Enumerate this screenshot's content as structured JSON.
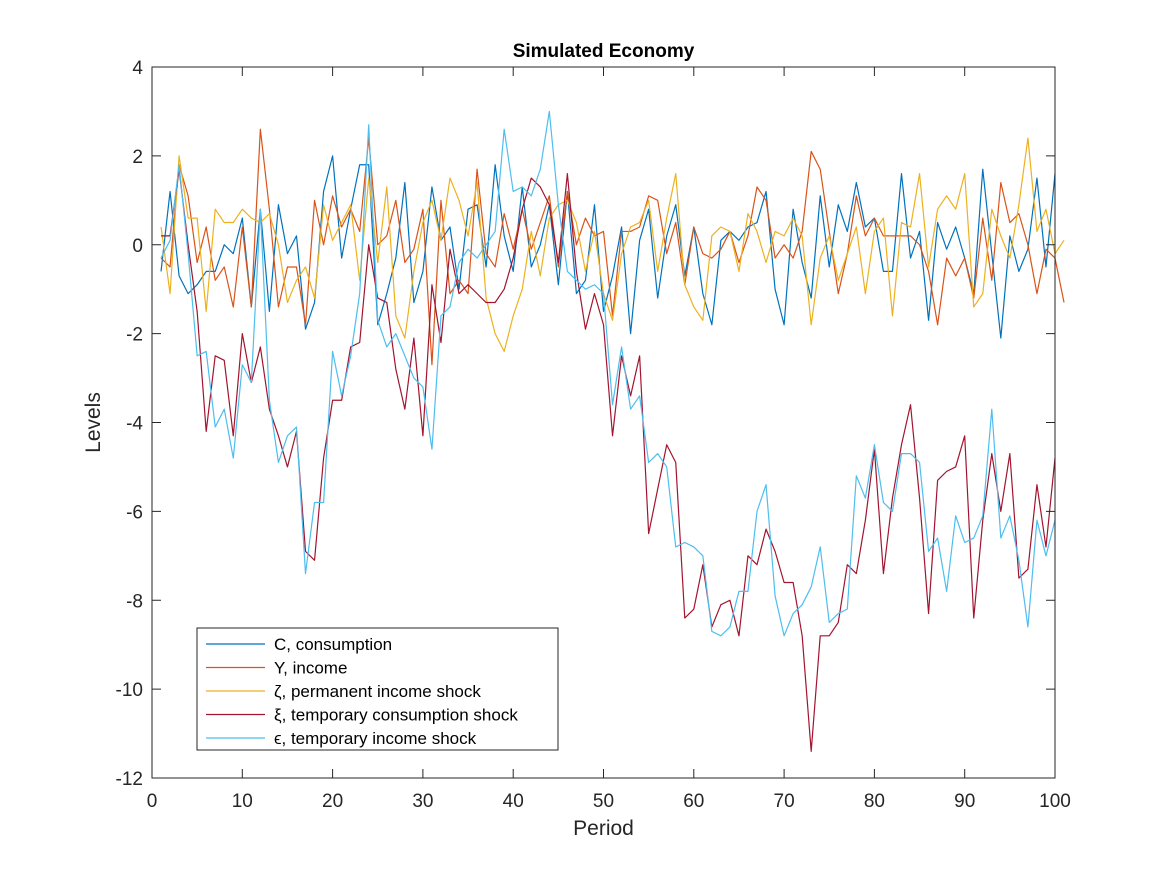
{
  "chart_data": {
    "type": "line",
    "title": "Simulated Economy",
    "xlabel": "Period",
    "ylabel": "Levels",
    "xlim": [
      0,
      100
    ],
    "ylim": [
      -12,
      4
    ],
    "xticks": [
      0,
      10,
      20,
      30,
      40,
      50,
      60,
      70,
      80,
      90,
      100
    ],
    "yticks": [
      -12,
      -10,
      -8,
      -6,
      -4,
      -2,
      0,
      2,
      4
    ],
    "grid": false,
    "legend_position": "bottom-left",
    "series": [
      {
        "name": "C, consumption",
        "color": "#0072BD",
        "x_start": 1,
        "values": [
          -0.6,
          1.2,
          -0.7,
          -1.1,
          -0.9,
          -0.6,
          -0.6,
          0.0,
          -0.2,
          0.6,
          -1.4,
          0.8,
          -1.5,
          0.9,
          -0.2,
          0.2,
          -1.9,
          -1.3,
          1.2,
          2.0,
          -0.3,
          0.8,
          1.8,
          1.8,
          -1.8,
          -1.1,
          -0.3,
          1.4,
          -1.3,
          -0.6,
          1.3,
          0.1,
          0.4,
          -1.0,
          0.8,
          0.9,
          -0.5,
          1.8,
          0.2,
          -0.6,
          1.3,
          -0.5,
          0.0,
          0.9,
          -0.9,
          1.2,
          -1.1,
          -0.8,
          0.9,
          -1.5,
          -0.7,
          0.4,
          -2.0,
          0.1,
          0.8,
          -1.2,
          0.2,
          0.9,
          -0.7,
          0.4,
          -1.1,
          -1.8,
          0.1,
          0.3,
          0.1,
          0.4,
          0.5,
          1.2,
          -1.0,
          -1.8,
          0.8,
          -0.4,
          -1.2,
          1.1,
          -0.5,
          0.9,
          0.3,
          1.4,
          0.4,
          0.6,
          -0.6,
          -0.6,
          1.6,
          -0.3,
          0.3,
          -1.7,
          0.5,
          -0.1,
          0.4,
          -0.3,
          -1.1,
          1.7,
          -0.2,
          -2.1,
          0.2,
          -0.6,
          -0.1,
          1.5,
          -0.5,
          1.6
        ]
      },
      {
        "name": "Y, income",
        "color": "#D95319",
        "x_start": 1,
        "values": [
          -0.3,
          -0.5,
          1.8,
          1.1,
          -0.4,
          0.4,
          -0.8,
          -0.5,
          -1.4,
          0.4,
          -1.4,
          2.6,
          0.8,
          -1.4,
          -0.5,
          -0.5,
          -1.8,
          1.0,
          0.0,
          1.1,
          0.4,
          0.8,
          0.3,
          2.4,
          0.0,
          0.2,
          1.0,
          -0.4,
          -0.1,
          0.8,
          -2.7,
          1.0,
          -1.1,
          -0.8,
          -1.1,
          1.7,
          -0.2,
          -0.5,
          0.7,
          -0.1,
          0.8,
          -0.1,
          0.5,
          1.1,
          -0.5,
          1.2,
          0.0,
          0.6,
          0.2,
          0.3,
          -1.6,
          0.3,
          0.3,
          0.4,
          1.1,
          1.0,
          -0.2,
          0.5,
          -0.9,
          0.4,
          -0.2,
          -0.3,
          -0.1,
          0.3,
          -0.4,
          0.2,
          1.3,
          1.0,
          -0.3,
          0.0,
          -0.3,
          0.3,
          2.1,
          1.7,
          0.3,
          -1.1,
          -0.2,
          1.1,
          0.2,
          0.6,
          0.2,
          0.2,
          0.2,
          0.2,
          0.0,
          -0.6,
          -1.8,
          -0.3,
          -0.7,
          -0.3,
          -1.2,
          0.6,
          -0.8,
          1.4,
          0.5,
          0.7,
          0.0,
          -1.1,
          -0.1,
          -0.3,
          -1.3
        ]
      },
      {
        "name": "ζ, permanent income shock",
        "color": "#EDB120",
        "x_start": 1,
        "values": [
          0.4,
          -1.1,
          2.0,
          0.6,
          0.6,
          -1.5,
          0.8,
          0.5,
          0.5,
          0.8,
          0.6,
          0.5,
          0.7,
          0.0,
          -1.3,
          -0.8,
          -0.5,
          -1.2,
          0.9,
          0.1,
          0.5,
          0.9,
          -0.8,
          1.5,
          -0.4,
          1.3,
          -1.6,
          -2.1,
          -0.6,
          0.5,
          1.0,
          0.1,
          1.5,
          1.0,
          0.2,
          1.4,
          -1.2,
          -2.0,
          -2.4,
          -1.6,
          -1.0,
          0.3,
          -0.7,
          0.6,
          0.9,
          1.0,
          0.5,
          -0.6,
          0.3,
          -1.1,
          -1.7,
          -0.2,
          0.4,
          0.5,
          1.0,
          -0.6,
          0.6,
          1.6,
          -0.9,
          -1.4,
          -1.7,
          0.2,
          0.4,
          0.3,
          -0.6,
          0.7,
          0.3,
          -0.4,
          0.3,
          0.2,
          0.6,
          0.2,
          -1.8,
          -0.3,
          0.2,
          -0.8,
          -0.2,
          0.4,
          -1.1,
          0.3,
          0.6,
          -1.6,
          0.5,
          0.4,
          1.6,
          -0.5,
          0.8,
          1.1,
          0.8,
          1.6,
          -1.4,
          -1.1,
          0.8,
          0.2,
          -0.3,
          0.9,
          2.4,
          0.3,
          0.8,
          -0.2,
          0.1
        ]
      },
      {
        "name": "ξ, temporary consumption shock",
        "color": "#A2142F",
        "x_start": 1,
        "values": [
          0.2,
          0.2,
          1.7,
          0.0,
          -1.5,
          -4.2,
          -2.5,
          -2.6,
          -4.3,
          -2.0,
          -3.1,
          -2.3,
          -3.7,
          -4.3,
          -5.0,
          -4.2,
          -6.9,
          -7.1,
          -4.8,
          -3.5,
          -3.5,
          -2.3,
          -2.2,
          0.0,
          -1.2,
          -1.3,
          -2.8,
          -3.7,
          -2.1,
          -4.3,
          -0.9,
          -2.2,
          -0.1,
          -1.1,
          -0.9,
          -1.1,
          -1.3,
          -1.3,
          -1.0,
          -0.3,
          0.8,
          1.5,
          1.3,
          0.9,
          -0.4,
          1.6,
          -0.6,
          -1.9,
          -1.1,
          -1.8,
          -4.3,
          -2.5,
          -3.4,
          -2.5,
          -6.5,
          -5.5,
          -4.5,
          -4.9,
          -8.4,
          -8.2,
          -7.2,
          -8.6,
          -8.1,
          -8.0,
          -8.8,
          -7.0,
          -7.2,
          -6.4,
          -6.9,
          -7.6,
          -7.6,
          -8.8,
          -11.4,
          -8.8,
          -8.8,
          -8.5,
          -7.2,
          -7.4,
          -6.2,
          -4.6,
          -7.4,
          -5.7,
          -4.5,
          -3.6,
          -5.7,
          -8.3,
          -5.3,
          -5.1,
          -5.0,
          -4.3,
          -8.4,
          -6.2,
          -4.7,
          -6.0,
          -4.7,
          -7.5,
          -7.3,
          -5.4,
          -6.8,
          -4.8
        ]
      },
      {
        "name": "ϵ, temporary income shock",
        "color": "#4DBEEE",
        "x_start": 1,
        "values": [
          -0.3,
          0.1,
          1.8,
          -0.2,
          -2.5,
          -2.4,
          -4.1,
          -3.7,
          -4.8,
          -2.7,
          -3.1,
          0.8,
          -3.5,
          -4.9,
          -4.3,
          -4.1,
          -7.4,
          -5.8,
          -5.8,
          -2.4,
          -3.4,
          -2.5,
          -1.1,
          2.7,
          -1.7,
          -2.3,
          -2.0,
          -2.5,
          -3.0,
          -3.2,
          -4.6,
          -1.6,
          -1.4,
          -0.4,
          -0.1,
          -0.3,
          0.0,
          0.3,
          2.6,
          1.2,
          1.3,
          1.1,
          1.7,
          3.0,
          0.9,
          -0.6,
          -0.8,
          -1.0,
          -0.9,
          -1.1,
          -3.6,
          -2.3,
          -3.7,
          -3.4,
          -4.9,
          -4.7,
          -5.0,
          -6.8,
          -6.7,
          -6.8,
          -7.0,
          -8.7,
          -8.8,
          -8.6,
          -7.8,
          -7.8,
          -6.0,
          -5.4,
          -7.9,
          -8.8,
          -8.3,
          -8.1,
          -7.7,
          -6.8,
          -8.5,
          -8.3,
          -8.2,
          -5.2,
          -5.7,
          -4.5,
          -5.8,
          -6.0,
          -4.7,
          -4.7,
          -4.9,
          -6.9,
          -6.6,
          -7.8,
          -6.1,
          -6.7,
          -6.6,
          -6.1,
          -3.7,
          -6.6,
          -6.1,
          -7.1,
          -8.6,
          -6.2,
          -7.0,
          -6.2
        ]
      }
    ]
  }
}
